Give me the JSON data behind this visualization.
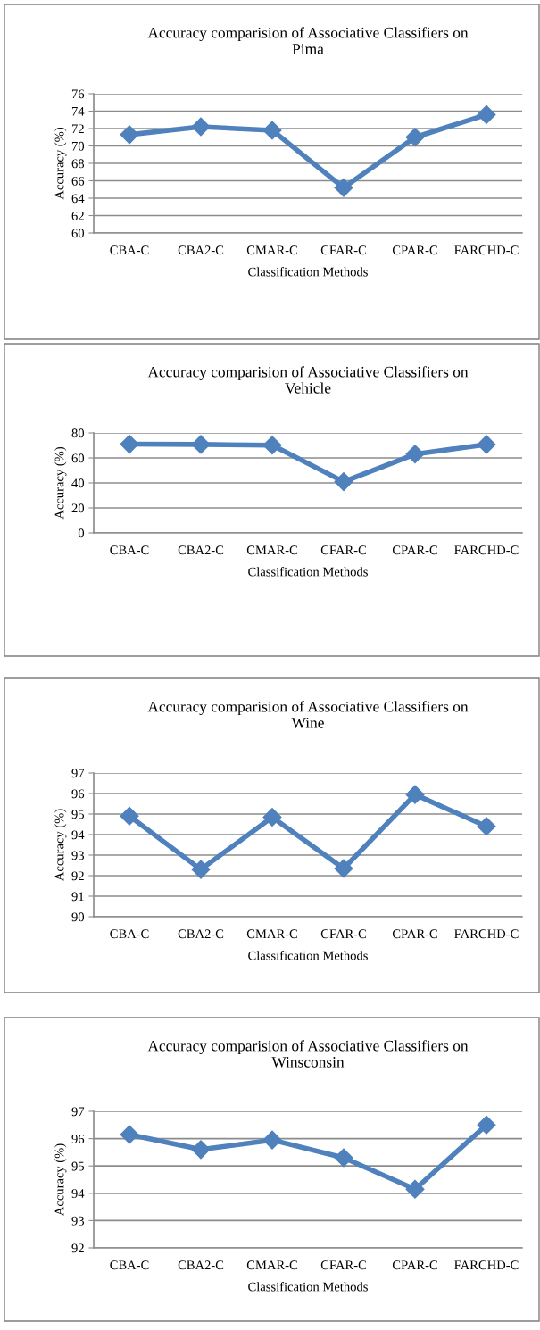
{
  "chart_data": [
    {
      "type": "line",
      "title": "Accuracy comparision of Associative Classifiers on Pima",
      "xlabel": "Classification Methods",
      "ylabel": "Accuracy (%)",
      "categories": [
        "CBA-C",
        "CBA2-C",
        "CMAR-C",
        "CFAR-C",
        "CPAR-C",
        "FARCHD-C"
      ],
      "series": [
        {
          "color": "#4f81bd",
          "values": [
            71.3,
            72.2,
            71.8,
            65.2,
            71.0,
            73.6
          ]
        }
      ],
      "ylim": [
        60,
        76
      ],
      "yticks": [
        60,
        62,
        64,
        66,
        68,
        70,
        72,
        74,
        76
      ],
      "grid": "y",
      "marker": "diamond",
      "line_style": "solid"
    },
    {
      "type": "line",
      "title": "Accuracy comparision of Associative Classifiers on Vehicle",
      "xlabel": "Classification Methods",
      "ylabel": "Accuracy (%)",
      "categories": [
        "CBA-C",
        "CBA2-C",
        "CMAR-C",
        "CFAR-C",
        "CPAR-C",
        "FARCHD-C"
      ],
      "series": [
        {
          "color": "#4f81bd",
          "values": [
            71,
            70.8,
            70.2,
            41,
            63,
            70.8
          ]
        }
      ],
      "ylim": [
        0,
        80
      ],
      "yticks": [
        0,
        20,
        40,
        60,
        80
      ],
      "grid": "y",
      "marker": "diamond",
      "line_style": "solid"
    },
    {
      "type": "line",
      "title": "Accuracy comparision of Associative Classifiers on Wine",
      "xlabel": "Classification Methods",
      "ylabel": "Accuracy (%)",
      "categories": [
        "CBA-C",
        "CBA2-C",
        "CMAR-C",
        "CFAR-C",
        "CPAR-C",
        "FARCHD-C"
      ],
      "series": [
        {
          "color": "#4f81bd",
          "values": [
            94.9,
            92.3,
            94.85,
            92.35,
            95.95,
            94.4
          ]
        }
      ],
      "ylim": [
        90,
        97
      ],
      "yticks": [
        90,
        91,
        92,
        93,
        94,
        95,
        96,
        97
      ],
      "grid": "y",
      "marker": "diamond",
      "line_style": "solid"
    },
    {
      "type": "line",
      "title": "Accuracy comparision of Associative Classifiers on Winsconsin",
      "xlabel": "Classification Methods",
      "ylabel": "Accuracy (%)",
      "categories": [
        "CBA-C",
        "CBA2-C",
        "CMAR-C",
        "CFAR-C",
        "CPAR-C",
        "FARCHD-C"
      ],
      "series": [
        {
          "color": "#4f81bd",
          "values": [
            96.15,
            95.6,
            95.95,
            95.3,
            94.15,
            96.5
          ]
        }
      ],
      "ylim": [
        92,
        97
      ],
      "yticks": [
        92,
        93,
        94,
        95,
        96,
        97
      ],
      "grid": "y",
      "marker": "diamond",
      "line_style": "solid"
    }
  ]
}
